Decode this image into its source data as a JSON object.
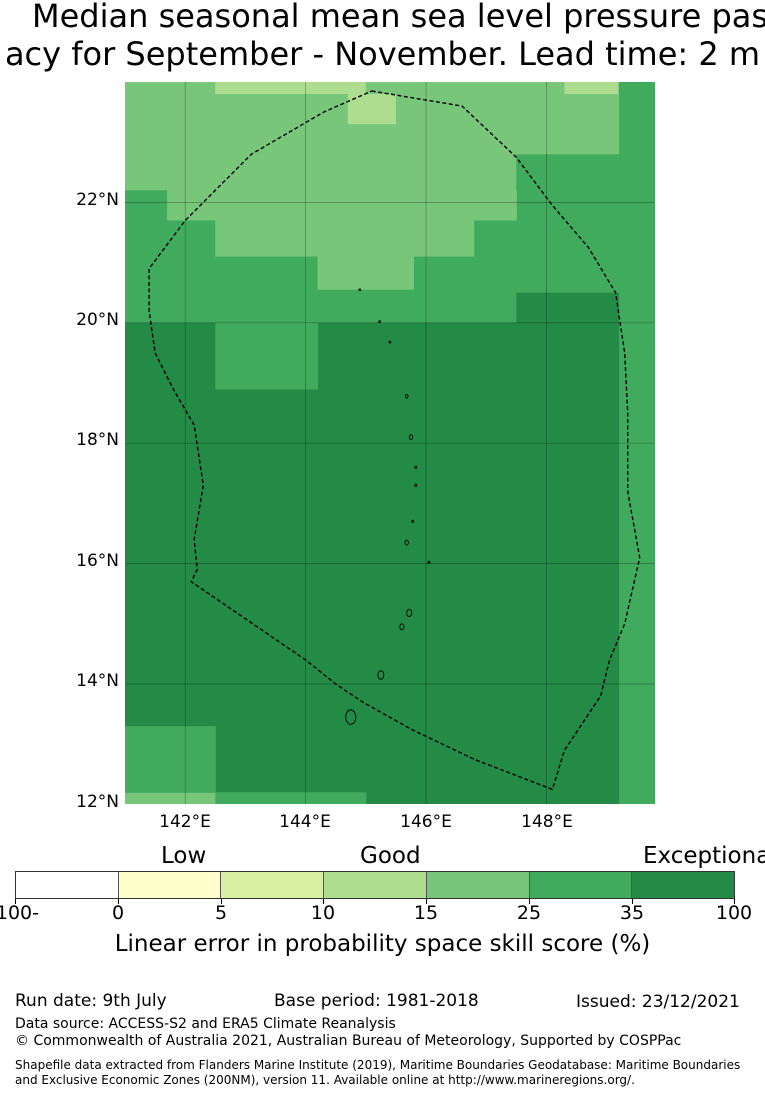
{
  "title": {
    "line1": "Median seasonal mean sea level pressure past",
    "line2": "acy for September - November. Lead time: 2 m"
  },
  "map": {
    "lat_labels": [
      "22°N",
      "20°N",
      "18°N",
      "16°N",
      "14°N",
      "12°N"
    ],
    "lon_labels": [
      "142°E",
      "144°E",
      "146°E",
      "148°E"
    ],
    "lon_range": [
      141.0,
      149.8
    ],
    "lat_range": [
      12.0,
      24.0
    ],
    "grid_lats": [
      22,
      20,
      18,
      16,
      14
    ],
    "grid_lons": [
      142,
      144,
      146,
      148
    ],
    "skill_cells": [
      {
        "lon": [
          141.0,
          142.5
        ],
        "lat": [
          23.8,
          24.0
        ],
        "color": "#78c679"
      },
      {
        "lon": [
          142.5,
          145.0
        ],
        "lat": [
          23.8,
          24.0
        ],
        "color": "#addd8e"
      },
      {
        "lon": [
          145.0,
          148.3
        ],
        "lat": [
          23.8,
          24.0
        ],
        "color": "#78c679"
      },
      {
        "lon": [
          148.3,
          149.2
        ],
        "lat": [
          23.8,
          24.0
        ],
        "color": "#addd8e"
      },
      {
        "lon": [
          149.2,
          149.8
        ],
        "lat": [
          12.0,
          24.0
        ],
        "color": "#41ab5d"
      },
      {
        "lon": [
          141.0,
          144.7
        ],
        "lat": [
          22.2,
          23.8
        ],
        "color": "#78c679"
      },
      {
        "lon": [
          144.7,
          145.5
        ],
        "lat": [
          23.3,
          23.8
        ],
        "color": "#addd8e"
      },
      {
        "lon": [
          144.7,
          145.5
        ],
        "lat": [
          22.2,
          23.3
        ],
        "color": "#78c679"
      },
      {
        "lon": [
          145.5,
          149.2
        ],
        "lat": [
          22.8,
          23.8
        ],
        "color": "#78c679"
      },
      {
        "lon": [
          145.5,
          147.5
        ],
        "lat": [
          22.2,
          22.8
        ],
        "color": "#78c679"
      },
      {
        "lon": [
          147.5,
          149.2
        ],
        "lat": [
          20.5,
          22.8
        ],
        "color": "#41ab5d"
      },
      {
        "lon": [
          141.0,
          141.7
        ],
        "lat": [
          20.0,
          22.2
        ],
        "color": "#41ab5d"
      },
      {
        "lon": [
          141.7,
          147.5
        ],
        "lat": [
          21.7,
          22.2
        ],
        "color": "#78c679"
      },
      {
        "lon": [
          141.7,
          142.5
        ],
        "lat": [
          20.0,
          21.7
        ],
        "color": "#41ab5d"
      },
      {
        "lon": [
          142.5,
          146.8
        ],
        "lat": [
          21.1,
          21.7
        ],
        "color": "#78c679"
      },
      {
        "lon": [
          146.8,
          147.5
        ],
        "lat": [
          20.5,
          21.7
        ],
        "color": "#41ab5d"
      },
      {
        "lon": [
          142.5,
          144.2
        ],
        "lat": [
          20.0,
          21.1
        ],
        "color": "#41ab5d"
      },
      {
        "lon": [
          144.2,
          145.8
        ],
        "lat": [
          20.55,
          21.1
        ],
        "color": "#78c679"
      },
      {
        "lon": [
          145.8,
          146.8
        ],
        "lat": [
          20.0,
          21.1
        ],
        "color": "#41ab5d"
      },
      {
        "lon": [
          144.2,
          145.8
        ],
        "lat": [
          20.0,
          20.55
        ],
        "color": "#41ab5d"
      },
      {
        "lon": [
          146.8,
          147.5
        ],
        "lat": [
          20.0,
          20.5
        ],
        "color": "#41ab5d"
      },
      {
        "lon": [
          147.5,
          149.2
        ],
        "lat": [
          20.0,
          20.5
        ],
        "color": "#238b45"
      },
      {
        "lon": [
          141.0,
          149.2
        ],
        "lat": [
          12.0,
          20.0
        ],
        "color": "#238b45"
      },
      {
        "lon": [
          142.5,
          144.2
        ],
        "lat": [
          18.9,
          20.0
        ],
        "color": "#41ab5d"
      },
      {
        "lon": [
          141.0,
          142.5
        ],
        "lat": [
          12.75,
          13.3
        ],
        "color": "#41ab5d"
      },
      {
        "lon": [
          141.0,
          142.5
        ],
        "lat": [
          12.0,
          12.2
        ],
        "color": "#78c679"
      },
      {
        "lon": [
          142.5,
          145.0
        ],
        "lat": [
          12.0,
          12.2
        ],
        "color": "#41ab5d"
      },
      {
        "lon": [
          142.5,
          141.0
        ],
        "lat": [
          12.2,
          12.75
        ],
        "color": "#41ab5d"
      }
    ],
    "eez_boundary": [
      [
        145.1,
        23.85
      ],
      [
        146.6,
        23.6
      ],
      [
        147.5,
        22.75
      ],
      [
        148.1,
        21.95
      ],
      [
        148.7,
        21.25
      ],
      [
        149.15,
        20.5
      ],
      [
        149.3,
        19.5
      ],
      [
        149.35,
        18.5
      ],
      [
        149.35,
        17.2
      ],
      [
        149.55,
        16.1
      ],
      [
        149.3,
        15.0
      ],
      [
        149.05,
        14.4
      ],
      [
        148.9,
        13.8
      ],
      [
        148.5,
        13.2
      ],
      [
        148.3,
        12.9
      ],
      [
        148.1,
        12.25
      ],
      [
        146.8,
        12.75
      ],
      [
        145.75,
        13.25
      ],
      [
        144.95,
        13.7
      ],
      [
        144.5,
        14.0
      ],
      [
        144.0,
        14.4
      ],
      [
        142.1,
        15.7
      ],
      [
        142.2,
        15.9
      ],
      [
        142.15,
        16.4
      ],
      [
        142.3,
        17.3
      ],
      [
        142.15,
        18.3
      ],
      [
        141.8,
        18.9
      ],
      [
        141.5,
        19.5
      ],
      [
        141.4,
        20.2
      ],
      [
        141.4,
        20.9
      ],
      [
        142.0,
        21.7
      ],
      [
        143.1,
        22.8
      ],
      [
        144.3,
        23.5
      ],
      [
        145.1,
        23.85
      ]
    ],
    "islands": [
      {
        "lon": 144.75,
        "lat": 13.45,
        "r": 0.12
      },
      {
        "lon": 145.25,
        "lat": 14.15,
        "r": 0.07
      },
      {
        "lon": 145.6,
        "lat": 14.95,
        "r": 0.05
      },
      {
        "lon": 145.72,
        "lat": 15.18,
        "r": 0.06
      },
      {
        "lon": 146.05,
        "lat": 16.02,
        "r": 0.02
      },
      {
        "lon": 145.68,
        "lat": 16.35,
        "r": 0.04
      },
      {
        "lon": 145.78,
        "lat": 16.7,
        "r": 0.02
      },
      {
        "lon": 145.83,
        "lat": 17.3,
        "r": 0.02
      },
      {
        "lon": 145.83,
        "lat": 17.6,
        "r": 0.02
      },
      {
        "lon": 145.75,
        "lat": 18.1,
        "r": 0.04
      },
      {
        "lon": 145.68,
        "lat": 18.78,
        "r": 0.03
      },
      {
        "lon": 145.4,
        "lat": 19.68,
        "r": 0.015
      },
      {
        "lon": 145.23,
        "lat": 20.02,
        "r": 0.015
      },
      {
        "lon": 144.9,
        "lat": 20.55,
        "r": 0.012
      }
    ]
  },
  "colorbar": {
    "categories": [
      "Low",
      "Good",
      "Exceptional"
    ],
    "tick_labels": [
      "-100",
      "0",
      "5",
      "10",
      "15",
      "25",
      "35",
      "100"
    ],
    "colors": [
      "#ffffff",
      "#ffffcc",
      "#d9f0a3",
      "#addd8e",
      "#78c679",
      "#41ab5d",
      "#238b45"
    ],
    "label": "Linear error in probability space skill score (%)"
  },
  "footer": {
    "run_date": "Run date: 9th July",
    "base_period": "Base period: 1981-2018",
    "issued": "Issued: 23/12/2021",
    "data_source": "Data source: ACCESS-S2 and ERA5 Climate Reanalysis",
    "copyright": "© Commonwealth of Australia 2021, Australian Bureau of Meteorology, Supported by COSPPac",
    "shapefile_line1": "Shapefile data extracted from Flanders Marine Institute (2019), Maritime Boundaries Geodatabase: Maritime Boundaries",
    "shapefile_line2": "and Exclusive Economic Zones (200NM), version 11. Available online at http://www.marineregions.org/."
  }
}
